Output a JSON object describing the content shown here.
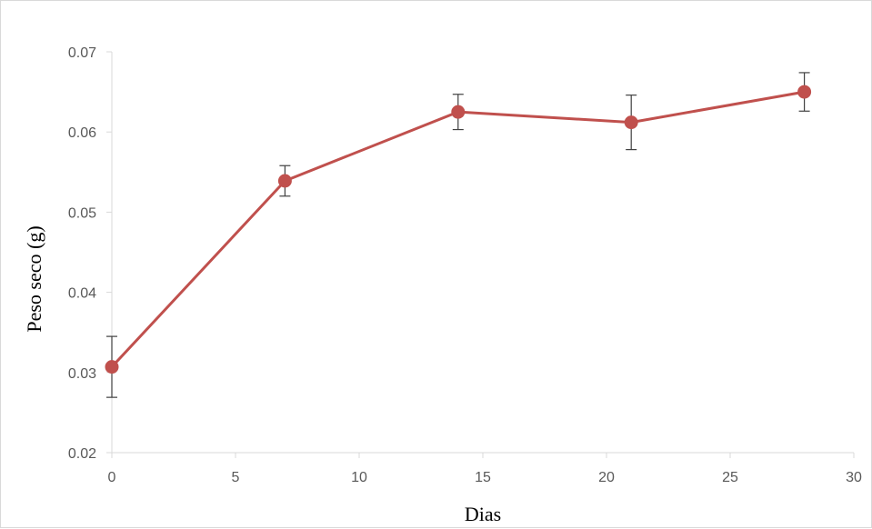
{
  "chart_data": {
    "type": "line",
    "title": "",
    "xlabel": "Dias",
    "ylabel": "Peso seco (g)",
    "xlim": [
      0,
      30
    ],
    "ylim": [
      0.02,
      0.07
    ],
    "xticks": [
      0,
      5,
      10,
      15,
      20,
      25,
      30
    ],
    "yticks": [
      0.02,
      0.03,
      0.04,
      0.05,
      0.06,
      0.07
    ],
    "xtick_labels": [
      "0",
      "5",
      "10",
      "15",
      "20",
      "25",
      "30"
    ],
    "ytick_labels": [
      "0.02",
      "0.03",
      "0.04",
      "0.05",
      "0.06",
      "0.07"
    ],
    "grid": false,
    "legend": "none",
    "series": [
      {
        "color": "#c0504d",
        "x": [
          0,
          7,
          14,
          21,
          28
        ],
        "y": [
          0.0307,
          0.0539,
          0.0625,
          0.0612,
          0.065
        ],
        "error": [
          0.0038,
          0.0019,
          0.0022,
          0.0034,
          0.0024
        ]
      }
    ],
    "axis_color": "#d9d9d9",
    "errorbar_color": "#404040"
  }
}
